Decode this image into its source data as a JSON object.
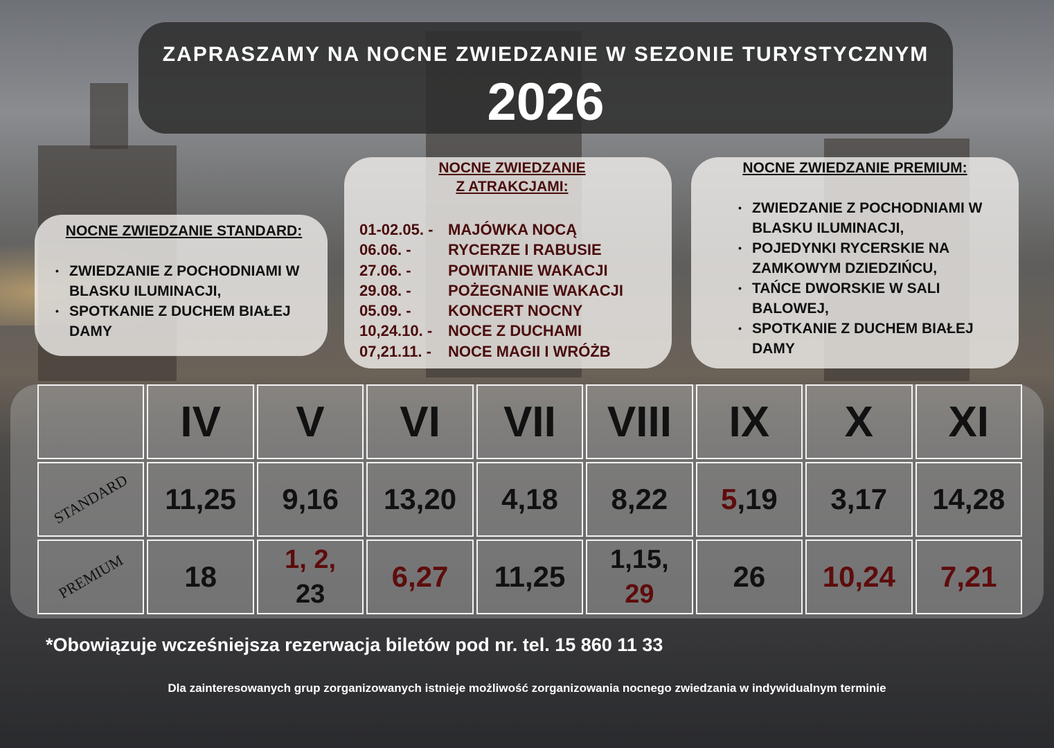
{
  "title": {
    "line": "ZAPRASZAMY NA NOCNE ZWIEDZANIE W SEZONIE TURYSTYCZNYM",
    "year": "2026"
  },
  "standard_box": {
    "heading": "NOCNE ZWIEDZANIE STANDARD:",
    "items": [
      "ZWIEDZANIE Z POCHODNIAMI W BLASKU ILUMINACJI,",
      "SPOTKANIE Z DUCHEM BIAŁEJ DAMY"
    ]
  },
  "attractions_box": {
    "heading_1": "NOCNE ZWIEDZANIE",
    "heading_2": "Z ATRAKCJAMI:",
    "events": [
      {
        "date": "01-02.05. -",
        "name": "MAJÓWKA NOCĄ"
      },
      {
        "date": "06.06.  -",
        "name": "RYCERZE I RABUSIE"
      },
      {
        "date": "27.06.   -",
        "name": "POWITANIE WAKACJI"
      },
      {
        "date": "29.08.   -",
        "name": "POŻEGNANIE WAKACJI"
      },
      {
        "date": "05.09.  -",
        "name": "KONCERT NOCNY"
      },
      {
        "date": "10,24.10. -",
        "name": "NOCE Z DUCHAMI"
      },
      {
        "date": "07,21.11. -",
        "name": "NOCE MAGII I WRÓŻB"
      }
    ]
  },
  "premium_box": {
    "heading": "NOCNE ZWIEDZANIE PREMIUM:",
    "items": [
      "ZWIEDZANIE Z POCHODNIAMI W BLASKU ILUMINACJI,",
      "POJEDYNKI RYCERSKIE NA ZAMKOWYM DZIEDZIŃCU,",
      "TAŃCE DWORSKIE W SALI BALOWEJ,",
      "SPOTKANIE Z DUCHEM BIAŁEJ DAMY"
    ]
  },
  "table": {
    "months": [
      "IV",
      "V",
      "VI",
      "VII",
      "VIII",
      "IX",
      "X",
      "XI"
    ],
    "standard_label": "STANDARD",
    "standard": [
      "11,25",
      "9,16",
      "13,20",
      "4,18",
      "8,22",
      ",19",
      "3,17",
      "14,28"
    ],
    "standard_ix_highlight": "5",
    "premium_label": "PREMIUM",
    "premium": [
      "18",
      "1, 2,",
      "6,27",
      "11,25",
      "1,15,",
      "26",
      "10,24",
      "7,21"
    ],
    "premium_v_second": "23",
    "premium_viii_second": "29"
  },
  "colors": {
    "highlight": "#5e0c0c",
    "attraction_text": "#4a0d0d"
  },
  "footer": {
    "note": "*Obowiązuje wcześniejsza rezerwacja biletów pod nr. tel. 15 860 11 33",
    "small": "Dla zainteresowanych grup zorganizowanych istnieje możliwość zorganizowania nocnego zwiedzania w indywidualnym terminie"
  }
}
